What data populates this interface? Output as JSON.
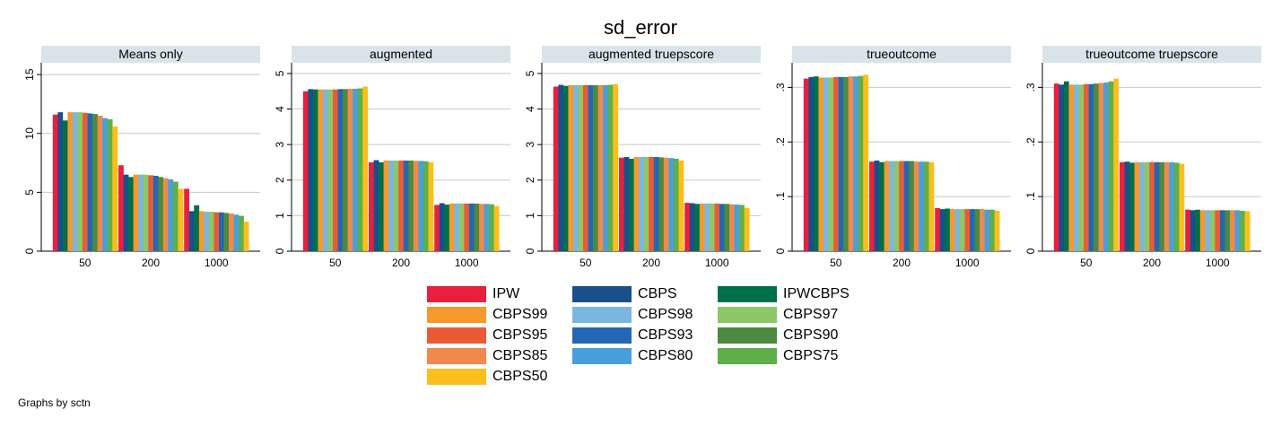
{
  "note": "Graphs by sctn",
  "chart_data": {
    "type": "bar",
    "title": "sd_error",
    "categories": [
      "50",
      "200",
      "1000"
    ],
    "legend_position": "bottom",
    "grid": true,
    "series": [
      {
        "name": "IPW",
        "color": "#e8203e"
      },
      {
        "name": "CBPS",
        "color": "#1a4f8c"
      },
      {
        "name": "IPWCBPS",
        "color": "#00704a"
      },
      {
        "name": "CBPS99",
        "color": "#f7982b"
      },
      {
        "name": "CBPS98",
        "color": "#7bb6e0"
      },
      {
        "name": "CBPS97",
        "color": "#8dc767"
      },
      {
        "name": "CBPS95",
        "color": "#ea5b35"
      },
      {
        "name": "CBPS93",
        "color": "#2367b5"
      },
      {
        "name": "CBPS90",
        "color": "#4b8a3f"
      },
      {
        "name": "CBPS85",
        "color": "#f0894a"
      },
      {
        "name": "CBPS80",
        "color": "#489fdc"
      },
      {
        "name": "CBPS75",
        "color": "#5fae4a"
      },
      {
        "name": "CBPS50",
        "color": "#fbbe1b"
      }
    ],
    "panels": [
      {
        "title": "Means only",
        "ylim": [
          0,
          16
        ],
        "yticks": [
          0,
          5,
          10,
          15
        ],
        "ytick_labels": [
          "0",
          "5",
          "10",
          "15"
        ],
        "values": [
          [
            11.6,
            11.8,
            11.1,
            11.8,
            11.8,
            11.8,
            11.75,
            11.7,
            11.65,
            11.5,
            11.3,
            11.2,
            10.6
          ],
          [
            7.3,
            6.5,
            6.3,
            6.5,
            6.5,
            6.5,
            6.45,
            6.4,
            6.3,
            6.2,
            6.1,
            5.9,
            5.3
          ],
          [
            5.3,
            3.4,
            3.9,
            3.4,
            3.35,
            3.35,
            3.3,
            3.3,
            3.25,
            3.2,
            3.1,
            3.0,
            2.5
          ]
        ]
      },
      {
        "title": "augmented",
        "ylim": [
          0,
          5.3
        ],
        "yticks": [
          0,
          1,
          2,
          3,
          4,
          5
        ],
        "ytick_labels": [
          "0",
          "1",
          "2",
          "3",
          "4",
          "5"
        ],
        "values": [
          [
            4.5,
            4.56,
            4.55,
            4.55,
            4.55,
            4.55,
            4.55,
            4.56,
            4.56,
            4.57,
            4.57,
            4.58,
            4.63
          ],
          [
            2.5,
            2.56,
            2.5,
            2.55,
            2.55,
            2.55,
            2.55,
            2.55,
            2.55,
            2.54,
            2.54,
            2.53,
            2.5
          ],
          [
            1.3,
            1.35,
            1.31,
            1.34,
            1.34,
            1.34,
            1.34,
            1.34,
            1.34,
            1.33,
            1.33,
            1.32,
            1.27
          ]
        ]
      },
      {
        "title": "augmented truepscore",
        "ylim": [
          0,
          5.3
        ],
        "yticks": [
          0,
          1,
          2,
          3,
          4,
          5
        ],
        "ytick_labels": [
          "0",
          "1",
          "2",
          "3",
          "4",
          "5"
        ],
        "values": [
          [
            4.63,
            4.68,
            4.65,
            4.67,
            4.67,
            4.67,
            4.67,
            4.67,
            4.67,
            4.67,
            4.67,
            4.68,
            4.7
          ],
          [
            2.63,
            2.65,
            2.6,
            2.65,
            2.65,
            2.65,
            2.65,
            2.65,
            2.64,
            2.63,
            2.62,
            2.6,
            2.55
          ],
          [
            1.36,
            1.35,
            1.33,
            1.34,
            1.34,
            1.34,
            1.34,
            1.33,
            1.33,
            1.32,
            1.31,
            1.3,
            1.22
          ]
        ]
      },
      {
        "title": "trueoutcome",
        "ylim": [
          0,
          0.345
        ],
        "yticks": [
          0,
          0.1,
          0.2,
          0.3
        ],
        "ytick_labels": [
          "0",
          ".1",
          ".2",
          ".3"
        ],
        "values": [
          [
            0.316,
            0.319,
            0.32,
            0.318,
            0.318,
            0.318,
            0.319,
            0.319,
            0.319,
            0.32,
            0.32,
            0.321,
            0.323
          ],
          [
            0.164,
            0.166,
            0.163,
            0.165,
            0.165,
            0.165,
            0.165,
            0.165,
            0.165,
            0.164,
            0.164,
            0.164,
            0.163
          ],
          [
            0.079,
            0.077,
            0.078,
            0.077,
            0.077,
            0.077,
            0.077,
            0.077,
            0.077,
            0.077,
            0.076,
            0.076,
            0.074
          ]
        ]
      },
      {
        "title": "trueoutcome truepscore",
        "ylim": [
          0,
          0.345
        ],
        "yticks": [
          0,
          0.1,
          0.2,
          0.3
        ],
        "ytick_labels": [
          "0",
          ".1",
          ".2",
          ".3"
        ],
        "values": [
          [
            0.307,
            0.305,
            0.311,
            0.305,
            0.305,
            0.305,
            0.306,
            0.306,
            0.307,
            0.308,
            0.309,
            0.311,
            0.316
          ],
          [
            0.163,
            0.164,
            0.162,
            0.163,
            0.163,
            0.163,
            0.163,
            0.163,
            0.163,
            0.163,
            0.163,
            0.162,
            0.16
          ],
          [
            0.076,
            0.075,
            0.076,
            0.075,
            0.075,
            0.075,
            0.075,
            0.075,
            0.075,
            0.075,
            0.075,
            0.074,
            0.073
          ]
        ]
      }
    ]
  }
}
